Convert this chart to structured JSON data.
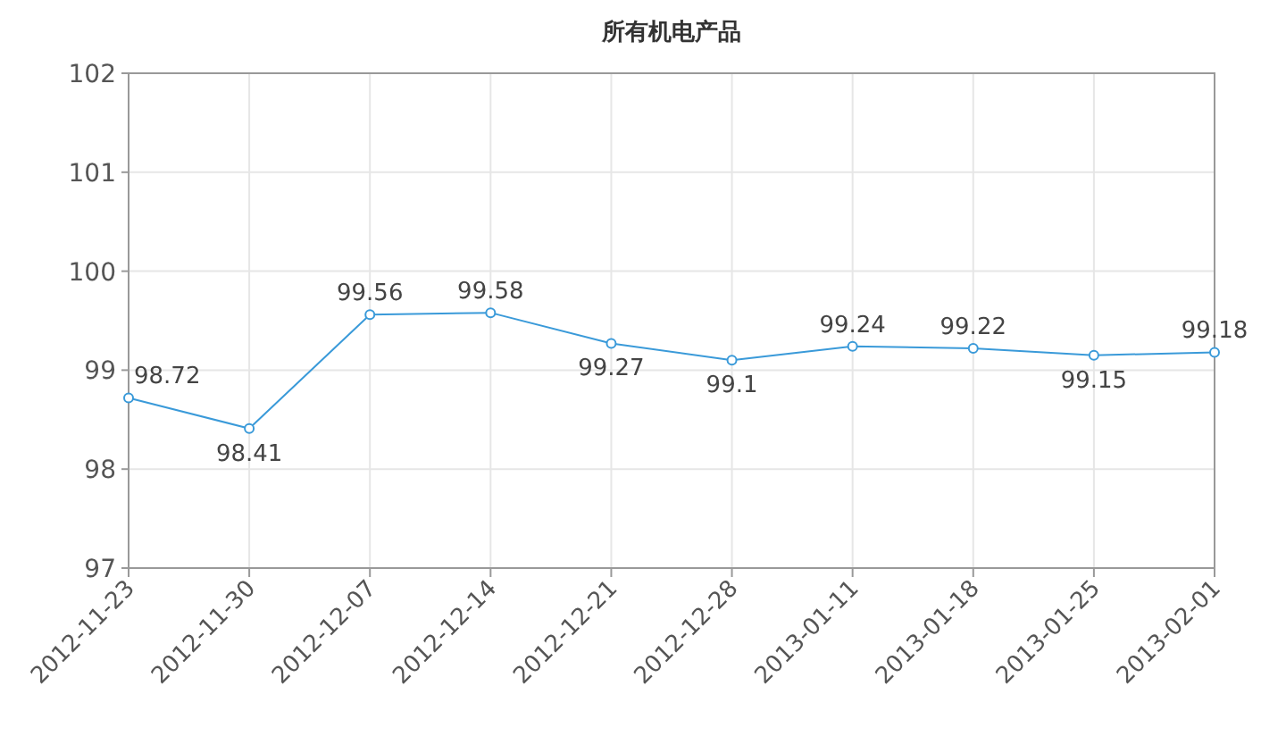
{
  "chart_data": {
    "type": "line",
    "title": "所有机电产品",
    "categories": [
      "2012-11-23",
      "2012-11-30",
      "2012-12-07",
      "2012-12-14",
      "2012-12-21",
      "2012-12-28",
      "2013-01-11",
      "2013-01-18",
      "2013-01-25",
      "2013-02-01"
    ],
    "series": [
      {
        "color": "#3a9ad9",
        "values": [
          98.72,
          98.41,
          99.56,
          99.58,
          99.27,
          99.1,
          99.24,
          99.22,
          99.15,
          99.18
        ]
      }
    ],
    "ylim": [
      97,
      102
    ],
    "yticks": [
      97,
      98,
      99,
      100,
      101,
      102
    ],
    "grid": true,
    "marker": "circle",
    "data_labels": true
  }
}
